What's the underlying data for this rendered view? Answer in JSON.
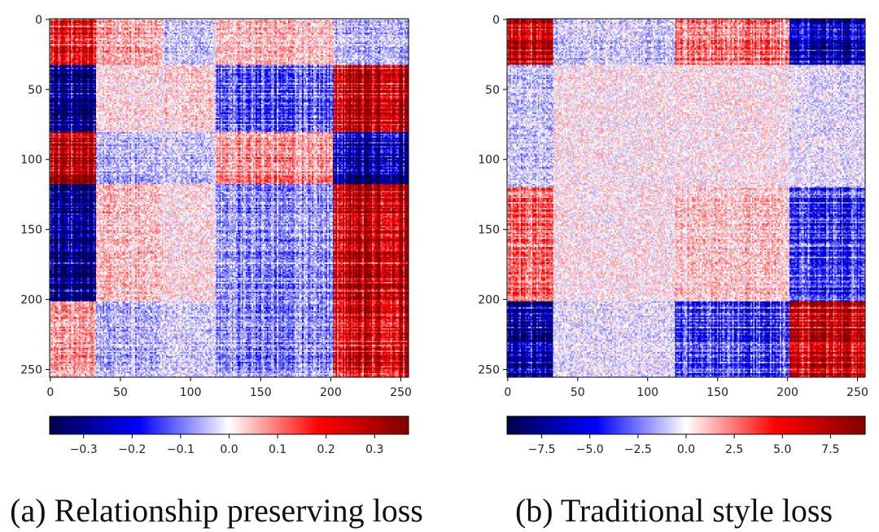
{
  "chart_data": [
    {
      "type": "heatmap",
      "title": "",
      "caption": "(a) Relationship preserving loss",
      "xlabel": "",
      "ylabel": "",
      "x_ticks": [
        "0",
        "50",
        "100",
        "150",
        "200",
        "250"
      ],
      "y_ticks": [
        "0",
        "50",
        "100",
        "150",
        "200",
        "250"
      ],
      "xlim": [
        0,
        256
      ],
      "ylim": [
        256,
        0
      ],
      "matrix_size": 256,
      "block_boundaries": [
        0,
        33,
        81,
        118,
        202,
        256
      ],
      "block_pattern": [
        [
          0.18,
          0.06,
          -0.04,
          0.05,
          -0.05
        ],
        [
          -0.3,
          0.02,
          0.03,
          -0.12,
          0.28
        ],
        [
          0.3,
          -0.05,
          -0.04,
          0.08,
          -0.3
        ],
        [
          -0.3,
          0.04,
          0.02,
          -0.08,
          0.28
        ],
        [
          0.06,
          -0.05,
          -0.03,
          -0.08,
          0.22
        ]
      ],
      "colorbar": {
        "cmap": "seismic",
        "vmin": -0.37,
        "vmax": 0.37,
        "ticks": [
          "−0.3",
          "−0.2",
          "−0.1",
          "0.0",
          "0.1",
          "0.2",
          "0.3"
        ],
        "tick_values": [
          -0.3,
          -0.2,
          -0.1,
          0.0,
          0.1,
          0.2,
          0.3
        ]
      }
    },
    {
      "type": "heatmap",
      "title": "",
      "caption": "(b) Traditional style loss",
      "xlabel": "",
      "ylabel": "",
      "x_ticks": [
        "0",
        "50",
        "100",
        "150",
        "200",
        "250"
      ],
      "y_ticks": [
        "0",
        "50",
        "100",
        "150",
        "200",
        "250"
      ],
      "xlim": [
        0,
        256
      ],
      "ylim": [
        256,
        0
      ],
      "matrix_size": 256,
      "block_boundaries": [
        0,
        33,
        120,
        202,
        256
      ],
      "block_pattern": [
        [
          6.5,
          -1.0,
          2.5,
          -6.5
        ],
        [
          -1.0,
          0.3,
          0.3,
          -0.5
        ],
        [
          2.5,
          0.3,
          1.0,
          -3.5
        ],
        [
          -6.5,
          -0.5,
          -3.5,
          6.5
        ]
      ],
      "colorbar": {
        "cmap": "seismic",
        "vmin": -9.3,
        "vmax": 9.3,
        "ticks": [
          "−7.5",
          "−5.0",
          "−2.5",
          "0.0",
          "2.5",
          "5.0",
          "7.5"
        ],
        "tick_values": [
          -7.5,
          -5.0,
          -2.5,
          0.0,
          2.5,
          5.0,
          7.5
        ]
      }
    }
  ]
}
